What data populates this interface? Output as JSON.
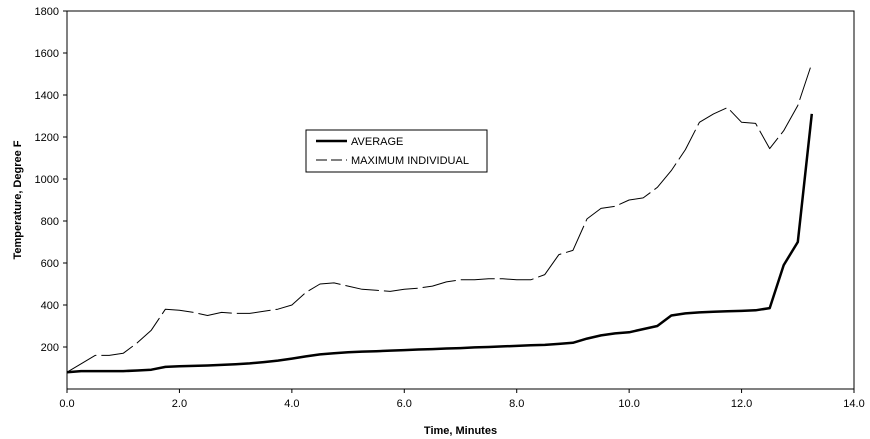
{
  "chart_data": {
    "type": "line",
    "title": "",
    "xlabel": "Time, Minutes",
    "ylabel": "Temperature, Degree F",
    "xlim": [
      0,
      14
    ],
    "ylim": [
      0,
      1800
    ],
    "x_ticks": [
      "0.0",
      "2.0",
      "4.0",
      "6.0",
      "8.0",
      "10.0",
      "12.0",
      "14.0"
    ],
    "y_ticks": [
      "200",
      "400",
      "600",
      "800",
      "1000",
      "1200",
      "1400",
      "1600",
      "1800"
    ],
    "grid": false,
    "legend_position": "center-left",
    "series": [
      {
        "name": "AVERAGE",
        "style": "solid",
        "color": "#000000",
        "x": [
          0,
          0.25,
          0.5,
          0.75,
          1.0,
          1.25,
          1.5,
          1.75,
          2.0,
          2.25,
          2.5,
          2.75,
          3.0,
          3.25,
          3.5,
          3.75,
          4.0,
          4.25,
          4.5,
          4.75,
          5.0,
          5.25,
          5.5,
          5.75,
          6.0,
          6.25,
          6.5,
          6.75,
          7.0,
          7.25,
          7.5,
          7.75,
          8.0,
          8.25,
          8.5,
          8.75,
          9.0,
          9.25,
          9.5,
          9.75,
          10.0,
          10.25,
          10.5,
          10.75,
          11.0,
          11.25,
          11.5,
          11.75,
          12.0,
          12.25,
          12.5,
          12.75,
          13.0,
          13.25
        ],
        "y": [
          80,
          85,
          85,
          85,
          85,
          88,
          92,
          105,
          108,
          110,
          112,
          115,
          118,
          122,
          128,
          135,
          145,
          155,
          165,
          170,
          175,
          178,
          180,
          183,
          185,
          188,
          190,
          193,
          195,
          198,
          200,
          203,
          205,
          208,
          210,
          215,
          220,
          240,
          255,
          265,
          270,
          285,
          300,
          350,
          360,
          365,
          368,
          370,
          372,
          375,
          385,
          590,
          700,
          1310
        ]
      },
      {
        "name": "MAXIMUM INDIVIDUAL",
        "style": "dashed",
        "color": "#000000",
        "x": [
          0,
          0.25,
          0.5,
          0.75,
          1.0,
          1.25,
          1.5,
          1.75,
          2.0,
          2.25,
          2.5,
          2.75,
          3.0,
          3.25,
          3.5,
          3.75,
          4.0,
          4.25,
          4.5,
          4.75,
          5.0,
          5.25,
          5.5,
          5.75,
          6.0,
          6.25,
          6.5,
          6.75,
          7.0,
          7.25,
          7.5,
          7.75,
          8.0,
          8.25,
          8.5,
          8.75,
          9.0,
          9.25,
          9.5,
          9.75,
          10.0,
          10.25,
          10.5,
          10.75,
          11.0,
          11.25,
          11.5,
          11.75,
          12.0,
          12.25,
          12.5,
          12.75,
          13.0,
          13.25
        ],
        "y": [
          80,
          120,
          160,
          160,
          170,
          220,
          280,
          380,
          375,
          365,
          350,
          365,
          360,
          360,
          370,
          380,
          400,
          460,
          500,
          505,
          490,
          475,
          470,
          465,
          475,
          480,
          490,
          510,
          520,
          520,
          525,
          525,
          520,
          520,
          545,
          640,
          660,
          810,
          860,
          870,
          900,
          910,
          960,
          1040,
          1140,
          1270,
          1310,
          1340,
          1270,
          1265,
          1145,
          1230,
          1350,
          1550
        ]
      }
    ]
  }
}
